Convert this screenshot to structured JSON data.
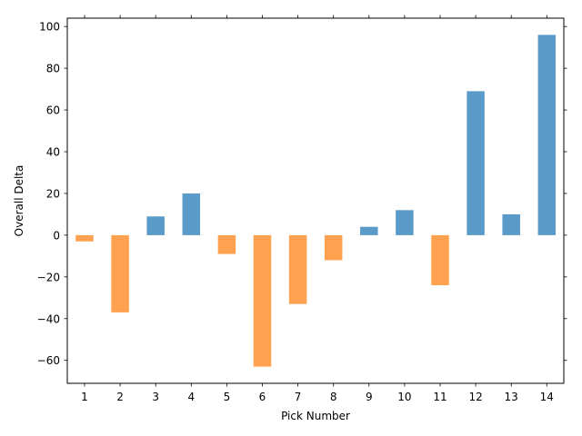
{
  "chart_data": {
    "type": "bar",
    "xlabel": "Pick Number",
    "ylabel": "Overall Delta",
    "ylim": [
      -71,
      104
    ],
    "yticks": [
      -60,
      -40,
      -20,
      0,
      20,
      40,
      60,
      80,
      100
    ],
    "grid": false,
    "categories": [
      "1",
      "2",
      "3",
      "4",
      "5",
      "6",
      "7",
      "8",
      "9",
      "10",
      "11",
      "12",
      "13",
      "14"
    ],
    "values": [
      -3,
      -37,
      9,
      20,
      -9,
      -63,
      -33,
      -12,
      4,
      12,
      -24,
      69,
      10,
      96
    ],
    "colors": {
      "positive": "#5b9bc9",
      "negative": "#ffa14f"
    }
  }
}
